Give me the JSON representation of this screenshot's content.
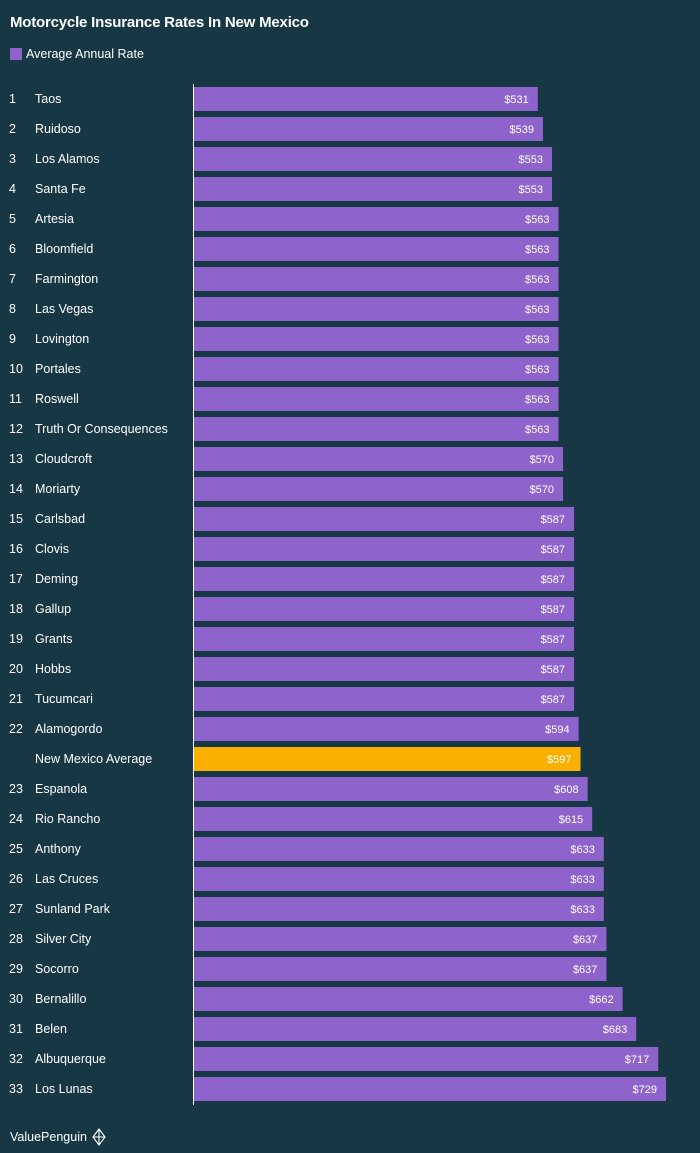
{
  "chart_data": {
    "type": "bar",
    "orientation": "horizontal",
    "title": "Motorcycle Insurance Rates In New Mexico",
    "legend": [
      {
        "label": "Average Annual Rate",
        "color": "#8e63cc"
      }
    ],
    "highlight_color": "#f9b000",
    "xlim": [
      0,
      729
    ],
    "rows": [
      {
        "rank": "1",
        "city": "Taos",
        "value": 531,
        "label": "$531"
      },
      {
        "rank": "2",
        "city": "Ruidoso",
        "value": 539,
        "label": "$539"
      },
      {
        "rank": "3",
        "city": "Los Alamos",
        "value": 553,
        "label": "$553"
      },
      {
        "rank": "4",
        "city": "Santa Fe",
        "value": 553,
        "label": "$553"
      },
      {
        "rank": "5",
        "city": "Artesia",
        "value": 563,
        "label": "$563"
      },
      {
        "rank": "6",
        "city": "Bloomfield",
        "value": 563,
        "label": "$563"
      },
      {
        "rank": "7",
        "city": "Farmington",
        "value": 563,
        "label": "$563"
      },
      {
        "rank": "8",
        "city": "Las Vegas",
        "value": 563,
        "label": "$563"
      },
      {
        "rank": "9",
        "city": "Lovington",
        "value": 563,
        "label": "$563"
      },
      {
        "rank": "10",
        "city": "Portales",
        "value": 563,
        "label": "$563"
      },
      {
        "rank": "11",
        "city": "Roswell",
        "value": 563,
        "label": "$563"
      },
      {
        "rank": "12",
        "city": "Truth Or Consequences",
        "value": 563,
        "label": "$563"
      },
      {
        "rank": "13",
        "city": "Cloudcroft",
        "value": 570,
        "label": "$570"
      },
      {
        "rank": "14",
        "city": "Moriarty",
        "value": 570,
        "label": "$570"
      },
      {
        "rank": "15",
        "city": "Carlsbad",
        "value": 587,
        "label": "$587"
      },
      {
        "rank": "16",
        "city": "Clovis",
        "value": 587,
        "label": "$587"
      },
      {
        "rank": "17",
        "city": "Deming",
        "value": 587,
        "label": "$587"
      },
      {
        "rank": "18",
        "city": "Gallup",
        "value": 587,
        "label": "$587"
      },
      {
        "rank": "19",
        "city": "Grants",
        "value": 587,
        "label": "$587"
      },
      {
        "rank": "20",
        "city": "Hobbs",
        "value": 587,
        "label": "$587"
      },
      {
        "rank": "21",
        "city": "Tucumcari",
        "value": 587,
        "label": "$587"
      },
      {
        "rank": "22",
        "city": "Alamogordo",
        "value": 594,
        "label": "$594"
      },
      {
        "rank": "",
        "city": "New Mexico Average",
        "value": 597,
        "label": "$597",
        "highlight": true
      },
      {
        "rank": "23",
        "city": "Espanola",
        "value": 608,
        "label": "$608"
      },
      {
        "rank": "24",
        "city": "Rio Rancho",
        "value": 615,
        "label": "$615"
      },
      {
        "rank": "25",
        "city": "Anthony",
        "value": 633,
        "label": "$633"
      },
      {
        "rank": "26",
        "city": "Las Cruces",
        "value": 633,
        "label": "$633"
      },
      {
        "rank": "27",
        "city": "Sunland Park",
        "value": 633,
        "label": "$633"
      },
      {
        "rank": "28",
        "city": "Silver City",
        "value": 637,
        "label": "$637"
      },
      {
        "rank": "29",
        "city": "Socorro",
        "value": 637,
        "label": "$637"
      },
      {
        "rank": "30",
        "city": "Bernalillo",
        "value": 662,
        "label": "$662"
      },
      {
        "rank": "31",
        "city": "Belen",
        "value": 683,
        "label": "$683"
      },
      {
        "rank": "32",
        "city": "Albuquerque",
        "value": 717,
        "label": "$717"
      },
      {
        "rank": "33",
        "city": "Los Lunas",
        "value": 729,
        "label": "$729"
      }
    ]
  },
  "footer": {
    "brand": "ValuePenguin",
    "icon": "valuepenguin-logo-icon"
  }
}
